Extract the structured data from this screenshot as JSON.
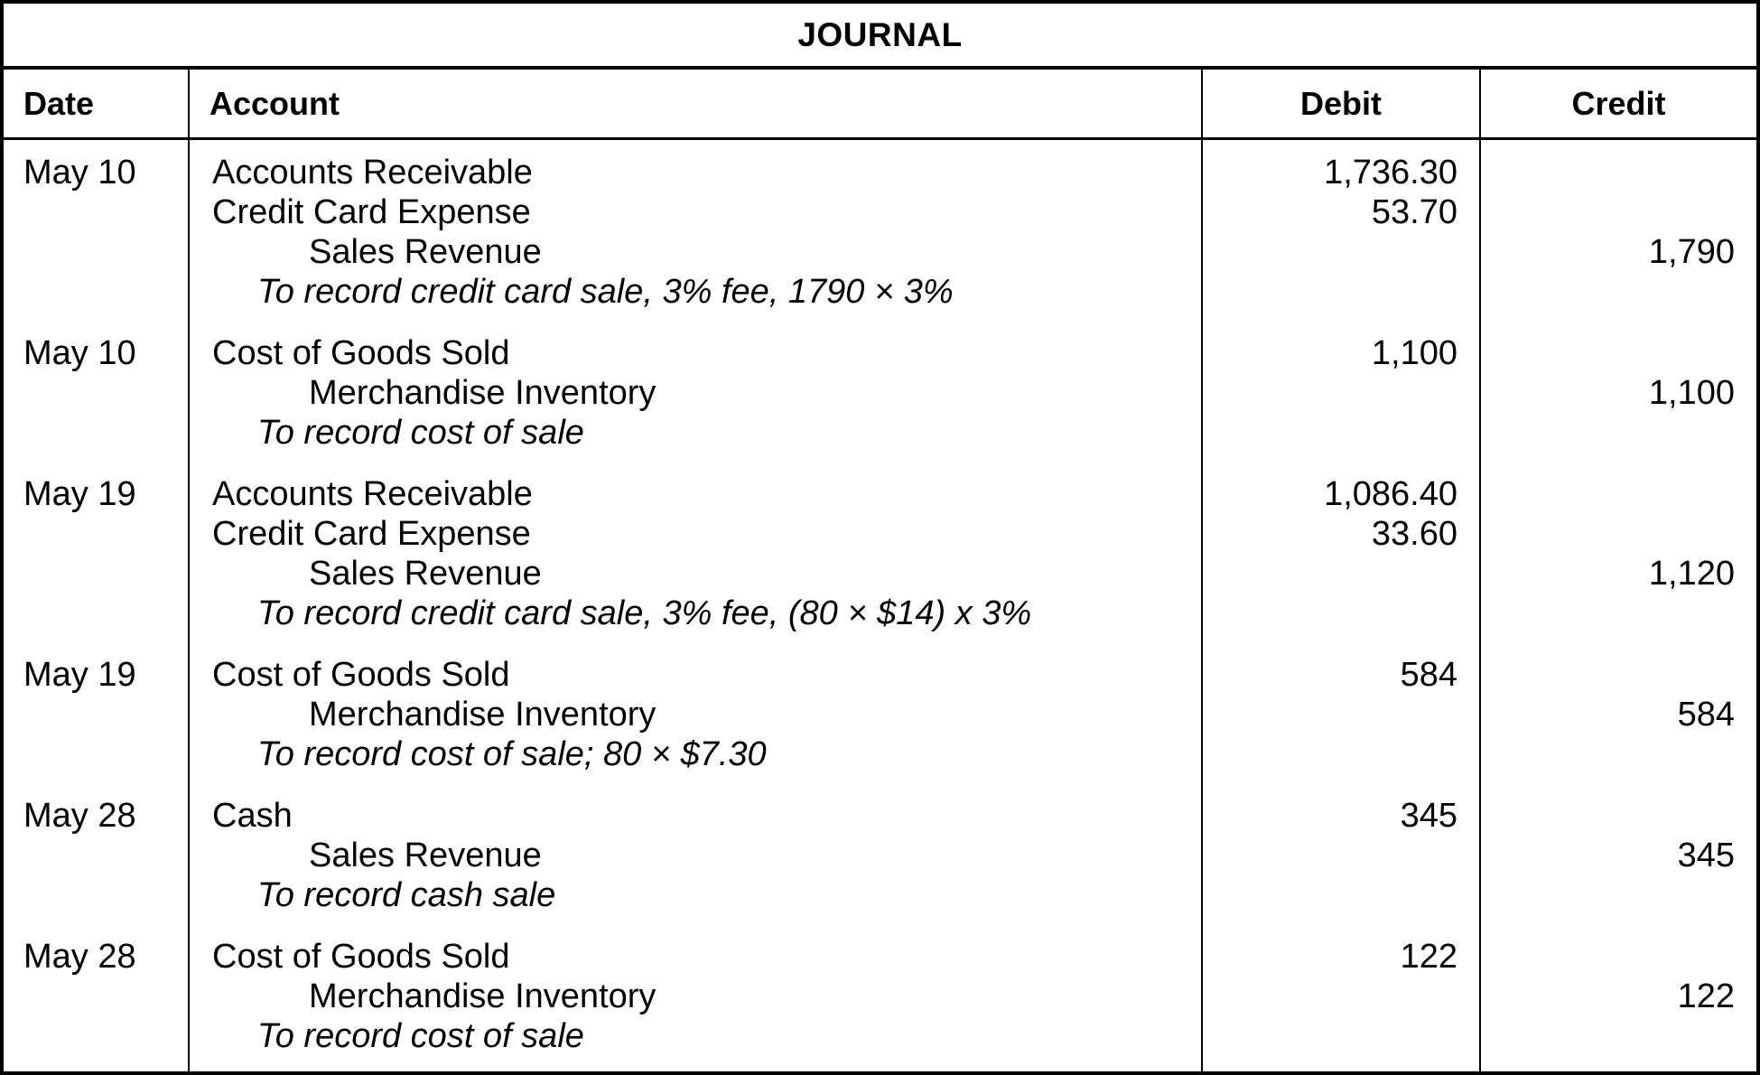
{
  "title": "JOURNAL",
  "columns": {
    "date": "Date",
    "account": "Account",
    "debit": "Debit",
    "credit": "Credit"
  },
  "entries": [
    {
      "date": "May 10",
      "lines": [
        {
          "kind": "main",
          "text": "Accounts Receivable",
          "debit": "1,736.30",
          "credit": ""
        },
        {
          "kind": "main",
          "text": "Credit Card Expense",
          "debit": "53.70",
          "credit": ""
        },
        {
          "kind": "credit-line",
          "text": "Sales Revenue",
          "debit": "",
          "credit": "1,790"
        },
        {
          "kind": "note",
          "text": "To record credit card sale, 3% fee, 1790 × 3%",
          "debit": "",
          "credit": ""
        }
      ]
    },
    {
      "date": "May 10",
      "lines": [
        {
          "kind": "main",
          "text": "Cost of Goods Sold",
          "debit": "1,100",
          "credit": ""
        },
        {
          "kind": "credit-line",
          "text": "Merchandise Inventory",
          "debit": "",
          "credit": "1,100"
        },
        {
          "kind": "note",
          "text": "To record cost of sale",
          "debit": "",
          "credit": ""
        }
      ]
    },
    {
      "date": "May 19",
      "lines": [
        {
          "kind": "main",
          "text": "Accounts Receivable",
          "debit": "1,086.40",
          "credit": ""
        },
        {
          "kind": "main",
          "text": "Credit Card Expense",
          "debit": "33.60",
          "credit": ""
        },
        {
          "kind": "credit-line",
          "text": "Sales Revenue",
          "debit": "",
          "credit": "1,120"
        },
        {
          "kind": "note",
          "text": "To record credit card sale, 3% fee, (80 × $14) x 3%",
          "debit": "",
          "credit": ""
        }
      ]
    },
    {
      "date": "May 19",
      "lines": [
        {
          "kind": "main",
          "text": "Cost of Goods Sold",
          "debit": "584",
          "credit": ""
        },
        {
          "kind": "credit-line",
          "text": "Merchandise Inventory",
          "debit": "",
          "credit": "584"
        },
        {
          "kind": "note",
          "text": "To record cost of sale; 80 × $7.30",
          "debit": "",
          "credit": ""
        }
      ]
    },
    {
      "date": "May 28",
      "lines": [
        {
          "kind": "main",
          "text": "Cash",
          "debit": "345",
          "credit": ""
        },
        {
          "kind": "credit-line",
          "text": "Sales Revenue",
          "debit": "",
          "credit": "345"
        },
        {
          "kind": "note",
          "text": "To record cash sale",
          "debit": "",
          "credit": ""
        }
      ]
    },
    {
      "date": "May 28",
      "lines": [
        {
          "kind": "main",
          "text": "Cost of Goods Sold",
          "debit": "122",
          "credit": ""
        },
        {
          "kind": "credit-line",
          "text": "Merchandise Inventory",
          "debit": "",
          "credit": "122"
        },
        {
          "kind": "note",
          "text": "To record cost of sale",
          "debit": "",
          "credit": ""
        }
      ]
    }
  ],
  "colors": {
    "border": "#000000",
    "text": "#000000",
    "background": "#ffffff"
  }
}
